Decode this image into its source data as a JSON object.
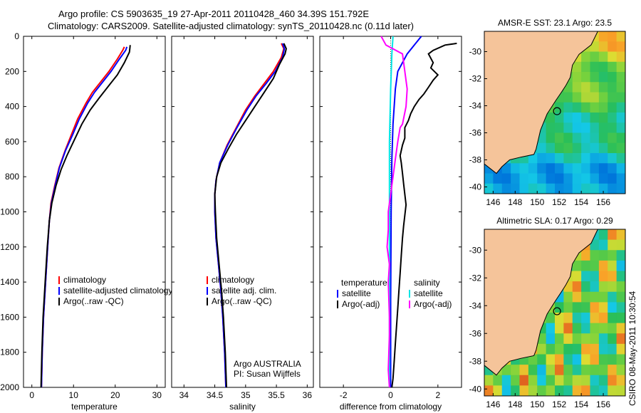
{
  "header": {
    "line1": "Argo profile: CS 5903635_19 27-Apr-2011 20110428_460 34.39S 151.792E",
    "line2": "Climatology: CARS2009. Satellite-adjusted climatology: synTS_20110428.nc (0.11d later)"
  },
  "side_label": "CSIRO 08-May-2011 10:30:54",
  "colors": {
    "climatology": "#ff0000",
    "satellite": "#0000ff",
    "argo": "#000000",
    "sat_salinity": "#00e5e5",
    "argo_salinity": "#ff00ff",
    "land": "#f5c49a"
  },
  "chart_data": [
    {
      "type": "line",
      "xlabel": "temperature",
      "x_ticks": [
        0,
        10,
        20,
        30
      ],
      "xlim": [
        -2,
        32
      ],
      "y_ticks": [
        0,
        200,
        400,
        600,
        800,
        1000,
        1200,
        1400,
        1600,
        1800,
        2000
      ],
      "ylim": [
        2000,
        0
      ],
      "y_reversed": true,
      "legend": [
        "climatology",
        "satellite-adjusted climatology",
        "Argo(..raw -QC)"
      ],
      "series": [
        {
          "name": "climatology",
          "color": "#ff0000",
          "points": [
            [
              22.2,
              60
            ],
            [
              21.8,
              80
            ],
            [
              20.5,
              130
            ],
            [
              18.5,
              200
            ],
            [
              16.5,
              260
            ],
            [
              14.5,
              320
            ],
            [
              13.0,
              380
            ],
            [
              11.0,
              470
            ],
            [
              9.5,
              560
            ],
            [
              8.0,
              650
            ],
            [
              6.5,
              750
            ],
            [
              5.5,
              850
            ],
            [
              4.6,
              950
            ],
            [
              4.2,
              1050
            ],
            [
              3.8,
              1200
            ],
            [
              3.3,
              1400
            ],
            [
              2.8,
              1600
            ],
            [
              2.5,
              1800
            ],
            [
              2.3,
              2000
            ]
          ]
        },
        {
          "name": "satellite-adjusted climatology",
          "color": "#0000ff",
          "points": [
            [
              22.8,
              60
            ],
            [
              22.5,
              80
            ],
            [
              21.0,
              130
            ],
            [
              19.0,
              200
            ],
            [
              17.0,
              260
            ],
            [
              15.0,
              320
            ],
            [
              13.4,
              380
            ],
            [
              11.4,
              470
            ],
            [
              9.8,
              560
            ],
            [
              8.1,
              650
            ],
            [
              6.6,
              750
            ],
            [
              5.6,
              850
            ],
            [
              4.7,
              950
            ],
            [
              4.2,
              1050
            ],
            [
              3.8,
              1200
            ],
            [
              3.3,
              1400
            ],
            [
              2.8,
              1600
            ],
            [
              2.5,
              1800
            ],
            [
              2.3,
              2000
            ]
          ]
        },
        {
          "name": "Argo(..raw -QC)",
          "color": "#000000",
          "points": [
            [
              23.6,
              50
            ],
            [
              23.5,
              70
            ],
            [
              23.4,
              90
            ],
            [
              22.2,
              150
            ],
            [
              20.5,
              220
            ],
            [
              18.5,
              280
            ],
            [
              16.2,
              350
            ],
            [
              14.0,
              420
            ],
            [
              12.0,
              500
            ],
            [
              10.2,
              590
            ],
            [
              8.4,
              680
            ],
            [
              7.0,
              760
            ],
            [
              5.8,
              850
            ],
            [
              4.8,
              950
            ],
            [
              4.2,
              1050
            ],
            [
              3.7,
              1200
            ],
            [
              3.2,
              1400
            ],
            [
              2.7,
              1600
            ],
            [
              2.4,
              1800
            ],
            [
              2.2,
              2000
            ]
          ]
        }
      ]
    },
    {
      "type": "line",
      "xlabel": "salinity",
      "x_ticks": [
        34,
        34.5,
        35,
        35.5,
        36
      ],
      "xlim": [
        33.8,
        36.1
      ],
      "y_ticks": [
        0,
        200,
        400,
        600,
        800,
        1000,
        1200,
        1400,
        1600,
        1800,
        2000
      ],
      "ylim": [
        2000,
        0
      ],
      "y_reversed": true,
      "legend": [
        "climatology",
        "satellite adj. clim.",
        "Argo(..raw -QC)"
      ],
      "annotation": [
        "Argo AUSTRALIA",
        "PI: Susan Wijffels"
      ],
      "series": [
        {
          "name": "climatology",
          "color": "#ff0000",
          "points": [
            [
              35.58,
              40
            ],
            [
              35.62,
              70
            ],
            [
              35.58,
              120
            ],
            [
              35.45,
              200
            ],
            [
              35.3,
              270
            ],
            [
              35.15,
              340
            ],
            [
              35.0,
              420
            ],
            [
              34.85,
              520
            ],
            [
              34.7,
              620
            ],
            [
              34.58,
              720
            ],
            [
              34.52,
              820
            ],
            [
              34.5,
              900
            ],
            [
              34.5,
              1000
            ],
            [
              34.52,
              1150
            ],
            [
              34.56,
              1300
            ],
            [
              34.6,
              1450
            ],
            [
              34.63,
              1600
            ],
            [
              34.66,
              1800
            ],
            [
              34.68,
              2000
            ]
          ]
        },
        {
          "name": "satellite adj. clim.",
          "color": "#0000ff",
          "points": [
            [
              35.6,
              40
            ],
            [
              35.63,
              70
            ],
            [
              35.6,
              120
            ],
            [
              35.48,
              200
            ],
            [
              35.33,
              270
            ],
            [
              35.17,
              340
            ],
            [
              35.02,
              420
            ],
            [
              34.86,
              520
            ],
            [
              34.71,
              620
            ],
            [
              34.58,
              720
            ],
            [
              34.52,
              820
            ],
            [
              34.5,
              900
            ],
            [
              34.5,
              1000
            ],
            [
              34.52,
              1150
            ],
            [
              34.56,
              1300
            ],
            [
              34.6,
              1450
            ],
            [
              34.63,
              1600
            ],
            [
              34.66,
              1800
            ],
            [
              34.68,
              2000
            ]
          ]
        },
        {
          "name": "Argo(..raw -QC)",
          "color": "#000000",
          "points": [
            [
              35.62,
              40
            ],
            [
              35.66,
              70
            ],
            [
              35.64,
              100
            ],
            [
              35.55,
              160
            ],
            [
              35.45,
              240
            ],
            [
              35.3,
              320
            ],
            [
              35.15,
              400
            ],
            [
              35.0,
              480
            ],
            [
              34.85,
              560
            ],
            [
              34.72,
              640
            ],
            [
              34.6,
              720
            ],
            [
              34.53,
              800
            ],
            [
              34.5,
              900
            ],
            [
              34.51,
              1000
            ],
            [
              34.53,
              1150
            ],
            [
              34.57,
              1300
            ],
            [
              34.61,
              1450
            ],
            [
              34.64,
              1600
            ],
            [
              34.67,
              1800
            ],
            [
              34.69,
              2000
            ]
          ]
        }
      ]
    },
    {
      "type": "line",
      "xlabel": "difference from climatology",
      "x_ticks": [
        -2,
        0,
        2
      ],
      "xlim": [
        -3,
        3
      ],
      "y_ticks": [
        0,
        200,
        400,
        600,
        800,
        1000,
        1200,
        1400,
        1600,
        1800,
        2000
      ],
      "ylim": [
        2000,
        0
      ],
      "y_reversed": true,
      "legend_left": {
        "title": "temperature",
        "entries": [
          "satellite",
          "Argo(-adj)"
        ]
      },
      "legend_right": {
        "title": "salinity",
        "entries": [
          "satellite",
          "Argo(-adj)"
        ]
      },
      "series": [
        {
          "name": "temperature satellite",
          "color": "#0000ff",
          "points": [
            [
              1.3,
              0
            ],
            [
              1.0,
              50
            ],
            [
              0.7,
              100
            ],
            [
              0.5,
              150
            ],
            [
              0.3,
              200
            ],
            [
              0.2,
              300
            ],
            [
              0.1,
              500
            ],
            [
              0.05,
              700
            ],
            [
              0.02,
              1000
            ],
            [
              0.0,
              1500
            ],
            [
              0.0,
              2000
            ]
          ]
        },
        {
          "name": "temperature Argo(-adj)",
          "color": "#000000",
          "points": [
            [
              2.8,
              40
            ],
            [
              2.3,
              50
            ],
            [
              1.8,
              80
            ],
            [
              1.6,
              100
            ],
            [
              1.8,
              150
            ],
            [
              1.7,
              180
            ],
            [
              2.0,
              220
            ],
            [
              1.8,
              250
            ],
            [
              1.6,
              290
            ],
            [
              1.4,
              330
            ],
            [
              1.2,
              360
            ],
            [
              1.0,
              400
            ],
            [
              0.85,
              440
            ],
            [
              0.75,
              480
            ],
            [
              0.6,
              520
            ],
            [
              0.6,
              580
            ],
            [
              0.5,
              620
            ],
            [
              0.4,
              680
            ],
            [
              0.45,
              720
            ],
            [
              0.5,
              780
            ],
            [
              0.55,
              840
            ],
            [
              0.6,
              900
            ],
            [
              0.65,
              960
            ],
            [
              0.6,
              1020
            ],
            [
              0.55,
              1080
            ],
            [
              0.5,
              1150
            ],
            [
              0.45,
              1250
            ],
            [
              0.4,
              1350
            ],
            [
              0.35,
              1450
            ],
            [
              0.3,
              1550
            ],
            [
              0.25,
              1650
            ],
            [
              0.2,
              1750
            ],
            [
              0.15,
              1850
            ],
            [
              0.1,
              1950
            ],
            [
              0.05,
              2000
            ]
          ]
        },
        {
          "name": "salinity satellite",
          "color": "#00e5e5",
          "points": [
            [
              0.1,
              0
            ],
            [
              0.05,
              100
            ],
            [
              0.0,
              300
            ],
            [
              -0.05,
              600
            ],
            [
              -0.05,
              1000
            ],
            [
              -0.05,
              1500
            ],
            [
              -0.05,
              2000
            ]
          ]
        },
        {
          "name": "salinity Argo(-adj)",
          "color": "#ff00ff",
          "points": [
            [
              -0.4,
              0
            ],
            [
              -0.2,
              50
            ],
            [
              0.5,
              100
            ],
            [
              0.6,
              200
            ],
            [
              0.7,
              300
            ],
            [
              0.65,
              400
            ],
            [
              0.5,
              500
            ],
            [
              0.4,
              520
            ],
            [
              0.3,
              600
            ],
            [
              0.2,
              700
            ],
            [
              0.1,
              800
            ],
            [
              0.0,
              900
            ],
            [
              -0.1,
              1000
            ],
            [
              -0.1,
              1100
            ],
            [
              -0.15,
              1200
            ],
            [
              -0.05,
              1300
            ],
            [
              -0.1,
              1400
            ],
            [
              -0.05,
              1600
            ],
            [
              -0.05,
              1700
            ],
            [
              -0.1,
              1900
            ],
            [
              -0.05,
              2000
            ]
          ]
        }
      ]
    },
    {
      "type": "heatmap",
      "title": "AMSR-E SST: 23.1 Argo: 23.5",
      "x_ticks": [
        146,
        148,
        150,
        152,
        154,
        156
      ],
      "y_ticks": [
        -30,
        -32,
        -34,
        -36,
        -38,
        -40
      ],
      "xlim": [
        145.2,
        158
      ],
      "ylim": [
        -40.5,
        -28.5
      ],
      "marker": [
        151.8,
        -34.4
      ]
    },
    {
      "type": "heatmap",
      "title": "Altimetric SLA: 0.17 Argo: 0.29",
      "x_ticks": [
        146,
        148,
        150,
        152,
        154,
        156
      ],
      "y_ticks": [
        -30,
        -32,
        -34,
        -36,
        -38,
        -40
      ],
      "xlim": [
        145.2,
        158
      ],
      "ylim": [
        -40.5,
        -28.5
      ],
      "marker": [
        151.8,
        -34.4
      ]
    }
  ]
}
